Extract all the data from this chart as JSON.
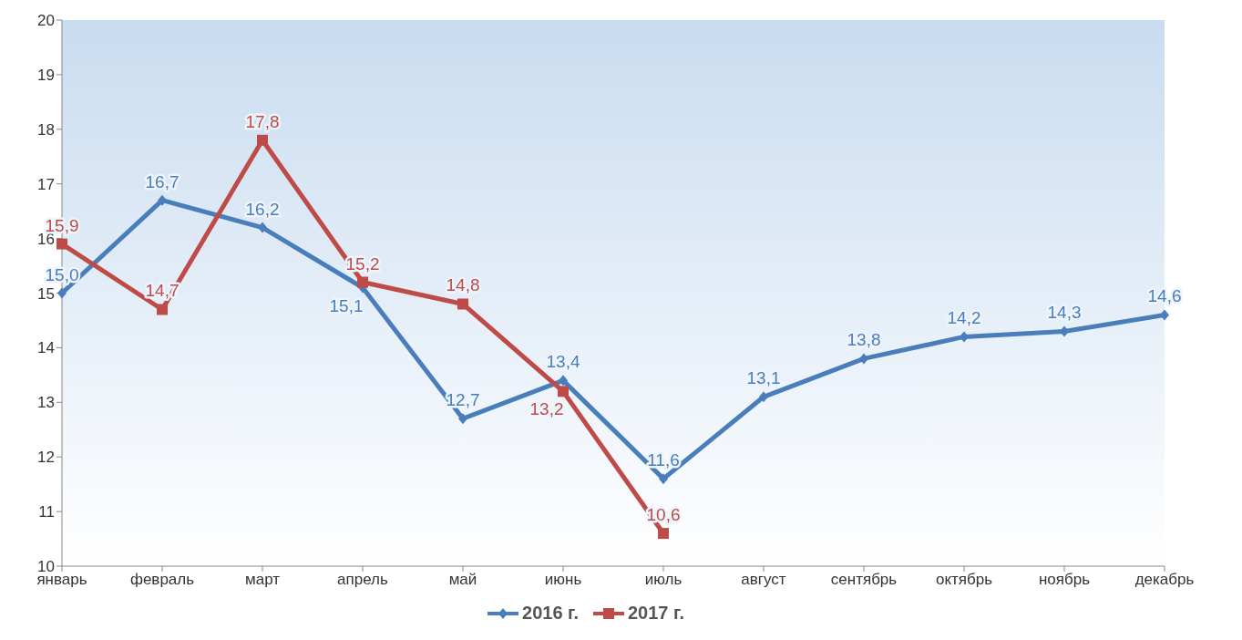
{
  "chart_data": {
    "type": "line",
    "categories": [
      "январь",
      "февраль",
      "март",
      "апрель",
      "май",
      "июнь",
      "июль",
      "август",
      "сентябрь",
      "октябрь",
      "ноябрь",
      "декабрь"
    ],
    "series": [
      {
        "name": "2016 г.",
        "color": "#4a7ebb",
        "marker": "diamond",
        "values": [
          15.0,
          16.7,
          16.2,
          15.1,
          12.7,
          13.4,
          11.6,
          13.1,
          13.8,
          14.2,
          14.3,
          14.6
        ],
        "value_labels": [
          "15,0",
          "16,7",
          "16,2",
          "15,1",
          "12,7",
          "13,4",
          "11,6",
          "13,1",
          "13,8",
          "14,2",
          "14,3",
          "14,6"
        ]
      },
      {
        "name": "2017 г.",
        "color": "#be4b48",
        "marker": "square",
        "values": [
          15.9,
          14.7,
          17.8,
          15.2,
          14.8,
          13.2,
          10.6,
          null,
          null,
          null,
          null,
          null
        ],
        "value_labels": [
          "15,9",
          "14,7",
          "17,8",
          "15,2",
          "14,8",
          "13,2",
          "10,6",
          null,
          null,
          null,
          null,
          null
        ]
      }
    ],
    "ylim": [
      10,
      20
    ],
    "yticks": [
      10,
      11,
      12,
      13,
      14,
      15,
      16,
      17,
      18,
      19,
      20
    ],
    "grid": false,
    "legend": "bottom"
  }
}
